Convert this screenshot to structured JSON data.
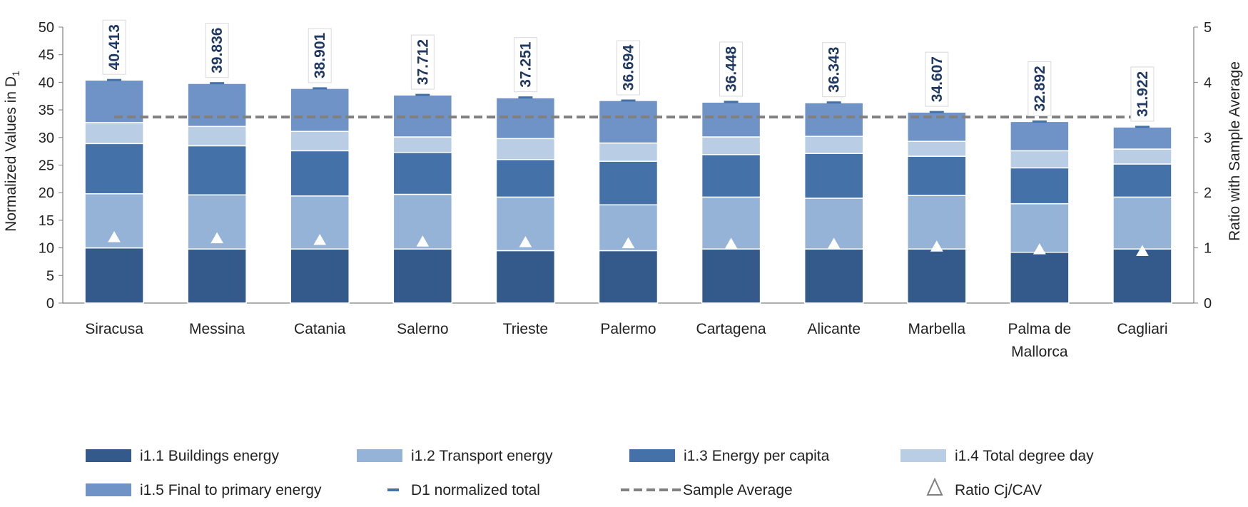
{
  "chart_data": {
    "type": "bar",
    "stacked": true,
    "categories": [
      "Siracusa",
      "Messina",
      "Catania",
      "Salerno",
      "Trieste",
      "Palermo",
      "Cartagena",
      "Alicante",
      "Marbella",
      "Palma de Mallorca",
      "Cagliari"
    ],
    "category_lines": [
      [
        "Siracusa"
      ],
      [
        "Messina"
      ],
      [
        "Catania"
      ],
      [
        "Salerno"
      ],
      [
        "Trieste"
      ],
      [
        "Palermo"
      ],
      [
        "Cartagena"
      ],
      [
        "Alicante"
      ],
      [
        "Marbella"
      ],
      [
        "Palma de",
        "Mallorca"
      ],
      [
        "Cagliari"
      ]
    ],
    "series": [
      {
        "name": "i1.1 Buildings energy",
        "color": "#335a8a",
        "values": [
          10.0,
          9.8,
          9.8,
          9.8,
          9.5,
          9.5,
          9.8,
          9.8,
          9.8,
          9.2,
          9.8
        ]
      },
      {
        "name": "i1.2 Transport energy",
        "color": "#95b3d7",
        "values": [
          9.8,
          9.8,
          9.6,
          9.9,
          9.7,
          8.3,
          9.4,
          9.2,
          9.7,
          8.8,
          9.4
        ]
      },
      {
        "name": "i1.3 Energy per capita",
        "color": "#4472a8",
        "values": [
          9.1,
          8.9,
          8.2,
          7.6,
          6.8,
          7.9,
          7.7,
          8.1,
          7.1,
          6.5,
          6.0
        ]
      },
      {
        "name": "i1.4 Total degree day",
        "color": "#b9cde5",
        "values": [
          3.8,
          3.5,
          3.5,
          2.8,
          3.8,
          3.3,
          3.2,
          3.1,
          2.7,
          3.1,
          2.7
        ]
      },
      {
        "name": "i1.5 Final to primary energy",
        "color": "#6f93c6",
        "values": [
          7.7,
          7.8,
          7.8,
          7.6,
          7.4,
          7.7,
          6.3,
          6.1,
          5.3,
          5.3,
          4.0
        ]
      }
    ],
    "totals": [
      40.413,
      39.836,
      38.901,
      37.712,
      37.251,
      36.694,
      36.448,
      36.343,
      34.607,
      32.892,
      31.922
    ],
    "total_labels": [
      "40.413",
      "39.836",
      "38.901",
      "37.712",
      "37.251",
      "36.694",
      "36.448",
      "36.343",
      "34.607",
      "32.892",
      "31.922"
    ],
    "total_series_name": "D1 normalized total",
    "sample_average": 33.7,
    "sample_average_name": "Sample Average",
    "ratio_series_name": "Ratio Cj/CAV",
    "ratio_values": [
      1.2,
      1.18,
      1.15,
      1.12,
      1.11,
      1.09,
      1.08,
      1.08,
      1.03,
      0.98,
      0.95
    ],
    "ylabel": "Normalized Values in D",
    "ylabel_sub": "1",
    "y2label": "Ratio with Sample Average",
    "ylim": [
      0,
      50
    ],
    "y2lim": [
      0,
      5
    ],
    "yticks": [
      "0",
      "5",
      "10",
      "15",
      "20",
      "25",
      "30",
      "35",
      "40",
      "45",
      "50"
    ],
    "y2ticks": [
      "0",
      "1",
      "2",
      "3",
      "4",
      "5"
    ],
    "grid": false,
    "legend_position": "bottom",
    "colors": {
      "total_marker": "#4472a8",
      "sample_average": "#808080",
      "ratio_marker_fill": "#ffffff",
      "ratio_marker_stroke": "#808080",
      "label_text": "#1f3864"
    }
  }
}
